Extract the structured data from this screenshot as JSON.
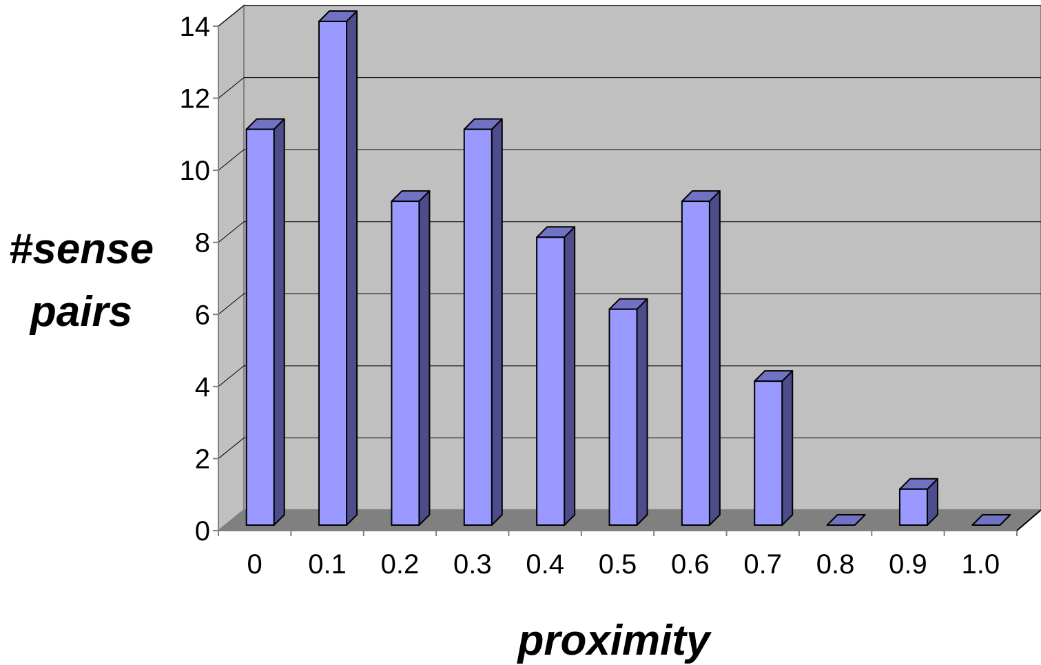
{
  "chart_data": {
    "type": "bar",
    "title": "",
    "xlabel": "proximity",
    "ylabel_lines": [
      "#sense",
      "pairs"
    ],
    "categories": [
      "0",
      "0.1",
      "0.2",
      "0.3",
      "0.4",
      "0.5",
      "0.6",
      "0.7",
      "0.8",
      "0.9",
      "1.0"
    ],
    "values": [
      11,
      14,
      9,
      11,
      8,
      6,
      9,
      4,
      0,
      1,
      0
    ],
    "ylim": [
      0,
      14
    ],
    "yticks": [
      0,
      2,
      4,
      6,
      8,
      10,
      12,
      14
    ],
    "grid": true,
    "legend": "none",
    "style": "3d-column",
    "colors": {
      "bar_front": "#9999ff",
      "bar_side": "#4d4d8c",
      "bar_top": "#7272c4",
      "back_wall": "#c0c0c0",
      "side_wall": "#c0c0c0",
      "floor": "#808080",
      "gridline": "#000000"
    }
  }
}
